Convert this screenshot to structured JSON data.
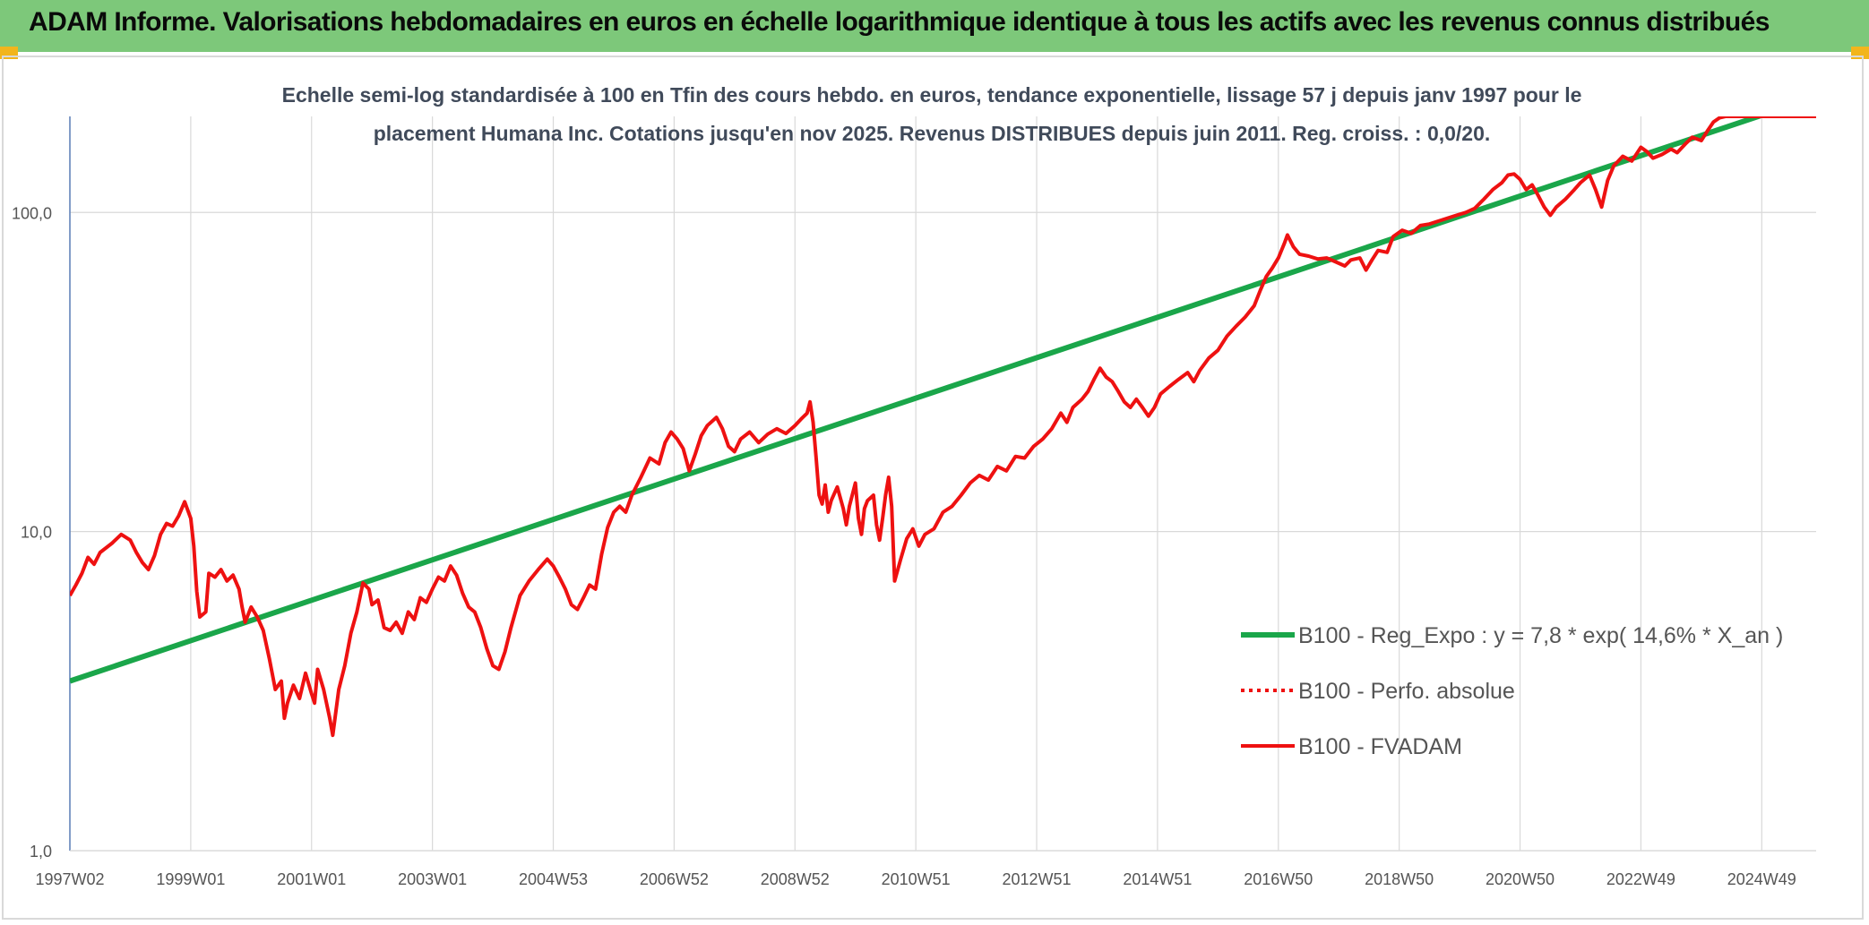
{
  "header": {
    "title": "ADAM Informe. Valorisations hebdomadaires en euros en échelle logarithmique identique à tous les actifs avec les revenus connus distribués"
  },
  "colors": {
    "header_bg": "#7dc87a",
    "corner_accent": "#f2b51c",
    "trend_line": "#1aa64a",
    "fvadam_line": "#ee1111",
    "perfo_line": "#ee1111",
    "grid": "#d9d9d9"
  },
  "chart_data": {
    "type": "line",
    "title_lines": [
      "Echelle semi-log standardisée à 100 en Tfin des cours hebdo. en euros, tendance exponentielle, lissage 57 j depuis janv 1997 pour le",
      "placement Humana Inc. Cotations jusqu'en nov 2025. Revenus DISTRIBUES depuis juin 2011. Reg. croiss. : 0,0/20."
    ],
    "y_scale": "log",
    "ylim": [
      1,
      200
    ],
    "y_ticks": [
      {
        "value": 1,
        "label": "1,0"
      },
      {
        "value": 10,
        "label": "10,0"
      },
      {
        "value": 100,
        "label": "100,0"
      }
    ],
    "xlim": [
      1997.0,
      2025.9
    ],
    "x_ticks": [
      {
        "value": 1997.0,
        "label": "1997W02"
      },
      {
        "value": 1999.0,
        "label": "1999W01"
      },
      {
        "value": 2001.0,
        "label": "2001W01"
      },
      {
        "value": 2003.0,
        "label": "2003W01"
      },
      {
        "value": 2005.0,
        "label": "2004W53"
      },
      {
        "value": 2007.0,
        "label": "2006W52"
      },
      {
        "value": 2009.0,
        "label": "2008W52"
      },
      {
        "value": 2011.0,
        "label": "2010W51"
      },
      {
        "value": 2013.0,
        "label": "2012W51"
      },
      {
        "value": 2015.0,
        "label": "2014W51"
      },
      {
        "value": 2017.0,
        "label": "2016W50"
      },
      {
        "value": 2019.0,
        "label": "2018W50"
      },
      {
        "value": 2021.0,
        "label": "2020W50"
      },
      {
        "value": 2023.0,
        "label": "2022W49"
      },
      {
        "value": 2025.0,
        "label": "2024W49"
      }
    ],
    "grid": true,
    "legend_position": "bottom-right",
    "series": [
      {
        "name": "B100 - Reg_Expo : y = 7,8 * exp( 14,6% * X_an )",
        "style": "solid-thick",
        "points": [
          [
            1997.0,
            3.4
          ],
          [
            2025.9,
            230
          ]
        ]
      },
      {
        "name": "B100 - Perfo. absolue",
        "style": "dotted",
        "points": []
      },
      {
        "name": "B100 - FVADAM",
        "style": "solid",
        "points": [
          [
            1997.0,
            6.3
          ],
          [
            1997.1,
            6.8
          ],
          [
            1997.2,
            7.4
          ],
          [
            1997.3,
            8.3
          ],
          [
            1997.4,
            7.9
          ],
          [
            1997.5,
            8.6
          ],
          [
            1997.7,
            9.2
          ],
          [
            1997.85,
            9.8
          ],
          [
            1998.0,
            9.4
          ],
          [
            1998.1,
            8.6
          ],
          [
            1998.2,
            8.0
          ],
          [
            1998.3,
            7.6
          ],
          [
            1998.4,
            8.4
          ],
          [
            1998.5,
            9.8
          ],
          [
            1998.6,
            10.6
          ],
          [
            1998.7,
            10.4
          ],
          [
            1998.8,
            11.2
          ],
          [
            1998.9,
            12.4
          ],
          [
            1999.0,
            11.0
          ],
          [
            1999.05,
            9.0
          ],
          [
            1999.1,
            6.5
          ],
          [
            1999.15,
            5.4
          ],
          [
            1999.25,
            5.6
          ],
          [
            1999.3,
            7.4
          ],
          [
            1999.4,
            7.2
          ],
          [
            1999.5,
            7.6
          ],
          [
            1999.6,
            7.0
          ],
          [
            1999.7,
            7.3
          ],
          [
            1999.8,
            6.6
          ],
          [
            1999.85,
            5.8
          ],
          [
            1999.9,
            5.2
          ],
          [
            2000.0,
            5.8
          ],
          [
            2000.1,
            5.4
          ],
          [
            2000.2,
            4.9
          ],
          [
            2000.3,
            4.0
          ],
          [
            2000.4,
            3.2
          ],
          [
            2000.5,
            3.4
          ],
          [
            2000.55,
            2.6
          ],
          [
            2000.6,
            2.9
          ],
          [
            2000.7,
            3.3
          ],
          [
            2000.8,
            3.0
          ],
          [
            2000.9,
            3.6
          ],
          [
            2001.0,
            3.1
          ],
          [
            2001.05,
            2.9
          ],
          [
            2001.1,
            3.7
          ],
          [
            2001.2,
            3.2
          ],
          [
            2001.3,
            2.6
          ],
          [
            2001.35,
            2.3
          ],
          [
            2001.45,
            3.2
          ],
          [
            2001.55,
            3.8
          ],
          [
            2001.65,
            4.8
          ],
          [
            2001.75,
            5.6
          ],
          [
            2001.85,
            6.9
          ],
          [
            2001.95,
            6.6
          ],
          [
            2002.0,
            5.9
          ],
          [
            2002.1,
            6.1
          ],
          [
            2002.2,
            5.0
          ],
          [
            2002.3,
            4.9
          ],
          [
            2002.4,
            5.2
          ],
          [
            2002.5,
            4.8
          ],
          [
            2002.6,
            5.6
          ],
          [
            2002.7,
            5.3
          ],
          [
            2002.8,
            6.2
          ],
          [
            2002.9,
            6.0
          ],
          [
            2003.0,
            6.6
          ],
          [
            2003.1,
            7.2
          ],
          [
            2003.2,
            7.0
          ],
          [
            2003.3,
            7.8
          ],
          [
            2003.4,
            7.3
          ],
          [
            2003.5,
            6.4
          ],
          [
            2003.6,
            5.8
          ],
          [
            2003.7,
            5.6
          ],
          [
            2003.8,
            5.0
          ],
          [
            2003.9,
            4.3
          ],
          [
            2004.0,
            3.8
          ],
          [
            2004.1,
            3.7
          ],
          [
            2004.2,
            4.2
          ],
          [
            2004.3,
            5.0
          ],
          [
            2004.45,
            6.3
          ],
          [
            2004.6,
            7.0
          ],
          [
            2004.75,
            7.6
          ],
          [
            2004.9,
            8.2
          ],
          [
            2005.0,
            7.8
          ],
          [
            2005.1,
            7.2
          ],
          [
            2005.2,
            6.6
          ],
          [
            2005.3,
            5.9
          ],
          [
            2005.4,
            5.7
          ],
          [
            2005.5,
            6.2
          ],
          [
            2005.6,
            6.8
          ],
          [
            2005.7,
            6.6
          ],
          [
            2005.8,
            8.5
          ],
          [
            2005.9,
            10.3
          ],
          [
            2006.0,
            11.5
          ],
          [
            2006.1,
            12.0
          ],
          [
            2006.2,
            11.5
          ],
          [
            2006.3,
            13.0
          ],
          [
            2006.45,
            14.8
          ],
          [
            2006.6,
            17.0
          ],
          [
            2006.75,
            16.3
          ],
          [
            2006.85,
            19.0
          ],
          [
            2006.95,
            20.5
          ],
          [
            2007.05,
            19.5
          ],
          [
            2007.15,
            18.2
          ],
          [
            2007.25,
            15.5
          ],
          [
            2007.35,
            17.5
          ],
          [
            2007.45,
            20.0
          ],
          [
            2007.55,
            21.5
          ],
          [
            2007.7,
            22.8
          ],
          [
            2007.8,
            21.0
          ],
          [
            2007.9,
            18.5
          ],
          [
            2008.0,
            17.8
          ],
          [
            2008.1,
            19.5
          ],
          [
            2008.25,
            20.5
          ],
          [
            2008.4,
            19.0
          ],
          [
            2008.55,
            20.2
          ],
          [
            2008.7,
            21.0
          ],
          [
            2008.85,
            20.3
          ],
          [
            2009.0,
            21.5
          ],
          [
            2009.1,
            22.5
          ],
          [
            2009.2,
            23.5
          ],
          [
            2009.25,
            25.5
          ],
          [
            2009.3,
            22.0
          ],
          [
            2009.35,
            17.0
          ],
          [
            2009.4,
            13.0
          ],
          [
            2009.45,
            12.2
          ],
          [
            2009.5,
            14.0
          ],
          [
            2009.55,
            11.5
          ],
          [
            2009.6,
            12.5
          ],
          [
            2009.7,
            13.8
          ],
          [
            2009.8,
            11.8
          ],
          [
            2009.85,
            10.5
          ],
          [
            2009.9,
            12.0
          ],
          [
            2010.0,
            14.2
          ],
          [
            2010.05,
            11.0
          ],
          [
            2010.1,
            9.8
          ],
          [
            2010.15,
            11.8
          ],
          [
            2010.2,
            12.5
          ],
          [
            2010.3,
            13.0
          ],
          [
            2010.35,
            10.5
          ],
          [
            2010.4,
            9.4
          ],
          [
            2010.45,
            11.0
          ],
          [
            2010.5,
            13.0
          ],
          [
            2010.55,
            14.8
          ],
          [
            2010.6,
            12.0
          ],
          [
            2010.65,
            7.0
          ],
          [
            2010.75,
            8.2
          ],
          [
            2010.85,
            9.5
          ],
          [
            2010.95,
            10.2
          ],
          [
            2011.05,
            9.0
          ],
          [
            2011.15,
            9.8
          ],
          [
            2011.3,
            10.2
          ],
          [
            2011.45,
            11.5
          ],
          [
            2011.6,
            12.0
          ],
          [
            2011.75,
            13.0
          ],
          [
            2011.9,
            14.2
          ],
          [
            2012.05,
            15.0
          ],
          [
            2012.2,
            14.5
          ],
          [
            2012.35,
            16.0
          ],
          [
            2012.5,
            15.5
          ],
          [
            2012.65,
            17.2
          ],
          [
            2012.8,
            17.0
          ],
          [
            2012.95,
            18.5
          ],
          [
            2013.1,
            19.5
          ],
          [
            2013.25,
            21.0
          ],
          [
            2013.4,
            23.5
          ],
          [
            2013.5,
            22.0
          ],
          [
            2013.6,
            24.5
          ],
          [
            2013.75,
            26.0
          ],
          [
            2013.85,
            27.5
          ],
          [
            2013.95,
            30.0
          ],
          [
            2014.05,
            32.5
          ],
          [
            2014.15,
            30.5
          ],
          [
            2014.25,
            29.5
          ],
          [
            2014.35,
            27.5
          ],
          [
            2014.45,
            25.5
          ],
          [
            2014.55,
            24.5
          ],
          [
            2014.65,
            26.0
          ],
          [
            2014.75,
            24.5
          ],
          [
            2014.85,
            23.0
          ],
          [
            2014.95,
            24.5
          ],
          [
            2015.05,
            27.0
          ],
          [
            2015.2,
            28.5
          ],
          [
            2015.35,
            30.0
          ],
          [
            2015.5,
            31.5
          ],
          [
            2015.6,
            29.5
          ],
          [
            2015.7,
            32.0
          ],
          [
            2015.85,
            35.0
          ],
          [
            2016.0,
            37.0
          ],
          [
            2016.15,
            41.0
          ],
          [
            2016.3,
            44.0
          ],
          [
            2016.45,
            47.0
          ],
          [
            2016.6,
            51.0
          ],
          [
            2016.7,
            57.0
          ],
          [
            2016.8,
            63.0
          ],
          [
            2016.9,
            67.0
          ],
          [
            2017.0,
            72.0
          ],
          [
            2017.1,
            80.0
          ],
          [
            2017.15,
            85.0
          ],
          [
            2017.25,
            78.0
          ],
          [
            2017.35,
            74.0
          ],
          [
            2017.5,
            73.0
          ],
          [
            2017.65,
            71.5
          ],
          [
            2017.8,
            72.0
          ],
          [
            2017.95,
            70.0
          ],
          [
            2018.1,
            68.0
          ],
          [
            2018.2,
            71.0
          ],
          [
            2018.35,
            72.0
          ],
          [
            2018.45,
            66.0
          ],
          [
            2018.55,
            71.0
          ],
          [
            2018.65,
            76.0
          ],
          [
            2018.8,
            75.0
          ],
          [
            2018.9,
            84.0
          ],
          [
            2019.05,
            88.0
          ],
          [
            2019.2,
            86.0
          ],
          [
            2019.35,
            91.0
          ],
          [
            2019.5,
            92.0
          ],
          [
            2019.65,
            94.0
          ],
          [
            2019.8,
            96.0
          ],
          [
            2019.95,
            98.0
          ],
          [
            2020.1,
            100.0
          ],
          [
            2020.25,
            103.0
          ],
          [
            2020.4,
            110.0
          ],
          [
            2020.55,
            118.0
          ],
          [
            2020.7,
            124.0
          ],
          [
            2020.8,
            131.0
          ],
          [
            2020.9,
            132.0
          ],
          [
            2021.0,
            127.0
          ],
          [
            2021.1,
            118.0
          ],
          [
            2021.2,
            122.0
          ],
          [
            2021.3,
            113.0
          ],
          [
            2021.4,
            104.0
          ],
          [
            2021.5,
            98.0
          ],
          [
            2021.6,
            104.0
          ],
          [
            2021.75,
            110.0
          ],
          [
            2021.9,
            118.0
          ],
          [
            2022.0,
            124.0
          ],
          [
            2022.15,
            131.0
          ],
          [
            2022.25,
            118.0
          ],
          [
            2022.35,
            104.0
          ],
          [
            2022.45,
            126.0
          ],
          [
            2022.55,
            140.0
          ],
          [
            2022.7,
            150.0
          ],
          [
            2022.85,
            145.0
          ],
          [
            2023.0,
            160.0
          ],
          [
            2023.1,
            155.0
          ],
          [
            2023.2,
            148.0
          ],
          [
            2023.35,
            152.0
          ],
          [
            2023.5,
            158.0
          ],
          [
            2023.6,
            154.0
          ],
          [
            2023.75,
            165.0
          ],
          [
            2023.85,
            172.0
          ],
          [
            2024.0,
            168.0
          ],
          [
            2024.1,
            180.0
          ],
          [
            2024.2,
            192.0
          ],
          [
            2024.3,
            198.0
          ],
          [
            2024.4,
            200.0
          ],
          [
            2024.45,
            200.0
          ],
          [
            2024.6,
            200.0
          ],
          [
            2024.75,
            200.0
          ],
          [
            2024.85,
            200.0
          ],
          [
            2024.95,
            200.0
          ],
          [
            2025.05,
            200.0
          ],
          [
            2025.1,
            200.0
          ],
          [
            2025.2,
            200.0
          ],
          [
            2025.3,
            200.0
          ],
          [
            2025.35,
            200.0
          ],
          [
            2025.45,
            200.0
          ],
          [
            2025.55,
            200.0
          ],
          [
            2025.6,
            200.0
          ],
          [
            2025.7,
            200.0
          ],
          [
            2025.75,
            200.0
          ],
          [
            2025.8,
            200.0
          ],
          [
            2025.85,
            200.0
          ],
          [
            2025.9,
            200.0
          ]
        ]
      }
    ]
  }
}
